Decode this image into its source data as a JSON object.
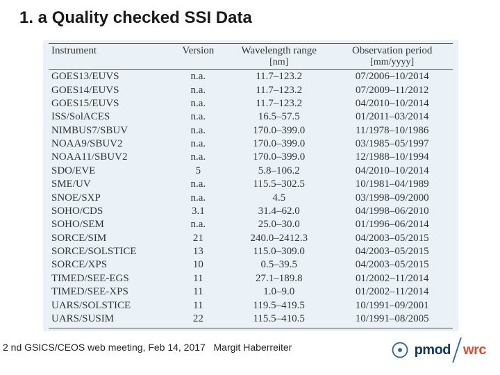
{
  "title": "1. a Quality checked SSI Data",
  "table": {
    "columns": [
      "Instrument",
      "Version",
      "Wavelength range",
      "Observation period"
    ],
    "subheaders": [
      "",
      "",
      "[nm]",
      "[mm/yyyy]"
    ],
    "col_align": [
      "left",
      "center",
      "center",
      "center"
    ],
    "col_widths_pct": [
      30,
      14,
      26,
      30
    ],
    "header_fontsize": 15,
    "cell_fontsize": 15,
    "font_family": "Times New Roman",
    "background_color": "#eaf2f7",
    "border_color": "#555555",
    "text_color": "#333333",
    "rows": [
      [
        "GOES13/EUVS",
        "n.a.",
        "11.7–123.2",
        "07/2006–10/2014"
      ],
      [
        "GOES14/EUVS",
        "n.a.",
        "11.7–123.2",
        "07/2009–11/2012"
      ],
      [
        "GOES15/EUVS",
        "n.a.",
        "11.7–123.2",
        "04/2010–10/2014"
      ],
      [
        "ISS/SolACES",
        "n.a.",
        "16.5–57.5",
        "01/2011–03/2014"
      ],
      [
        "NIMBUS7/SBUV",
        "n.a.",
        "170.0–399.0",
        "11/1978–10/1986"
      ],
      [
        "NOAA9/SBUV2",
        "n.a.",
        "170.0–399.0",
        "03/1985–05/1997"
      ],
      [
        "NOAA11/SBUV2",
        "n.a.",
        "170.0–399.0",
        "12/1988–10/1994"
      ],
      [
        "SDO/EVE",
        "5",
        "5.8–106.2",
        "04/2010–10/2014"
      ],
      [
        "SME/UV",
        "n.a.",
        "115.5–302.5",
        "10/1981–04/1989"
      ],
      [
        "SNOE/SXP",
        "n.a.",
        "4.5",
        "03/1998–09/2000"
      ],
      [
        "SOHO/CDS",
        "3.1",
        "31.4–62.0",
        "04/1998–06/2010"
      ],
      [
        "SOHO/SEM",
        "n.a.",
        "25.0–30.0",
        "01/1996–06/2014"
      ],
      [
        "SORCE/SIM",
        "21",
        "240.0–2412.3",
        "04/2003–05/2015"
      ],
      [
        "SORCE/SOLSTICE",
        "13",
        "115.0–309.0",
        "04/2003–05/2015"
      ],
      [
        "SORCE/XPS",
        "10",
        "0.5–39.5",
        "04/2003–05/2015"
      ],
      [
        "TIMED/SEE-EGS",
        "11",
        "27.1–189.8",
        "01/2002–11/2014"
      ],
      [
        "TIMED/SEE-XPS",
        "11",
        "1.0–9.0",
        "01/2002–11/2014"
      ],
      [
        "UARS/SOLSTICE",
        "11",
        "119.5–419.5",
        "10/1991–09/2001"
      ],
      [
        "UARS/SUSIM",
        "22",
        "115.5–410.5",
        "10/1991–08/2005"
      ]
    ]
  },
  "footer": {
    "text_left": "2 nd GSICS/CEOS web meeting, Feb 14, 2017",
    "author": "Margit Haberreiter",
    "logo_pmod": "pmod",
    "logo_wrc": "wrc",
    "pmod_color": "#103a63",
    "wrc_color": "#e04a2a"
  },
  "page_background": "#ffffff"
}
